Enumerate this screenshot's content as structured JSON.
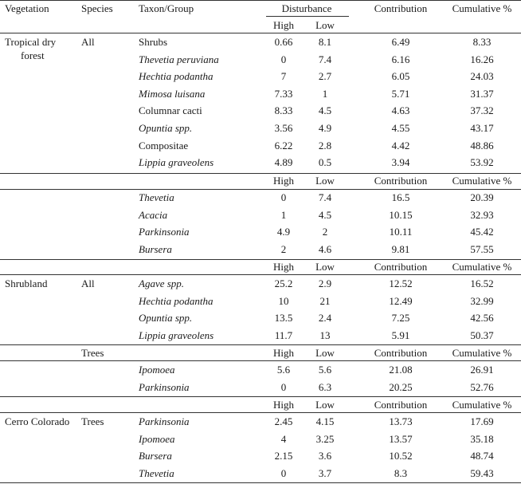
{
  "header": {
    "vegetation": "Vegetation",
    "species": "Species",
    "taxon": "Taxon/Group",
    "disturbance": "Disturbance",
    "contribution": "Contribution",
    "cumulative": "Cumulative %"
  },
  "subheader": {
    "high": "High",
    "low": "Low",
    "contribution": "Contribution",
    "cumulative": "Cumulative %"
  },
  "sections": [
    {
      "vegetation": "Tropical dry forest",
      "vegetation_lines": [
        "Tropical dry",
        "forest"
      ],
      "groups": [
        {
          "species": "All",
          "show_subheader": "partial",
          "rows": [
            {
              "taxon": "Shrubs",
              "italic": false,
              "high": "0.66",
              "low": "8.1",
              "contribution": "6.49",
              "cumulative": "8.33"
            },
            {
              "taxon": "Thevetia peruviana",
              "italic": true,
              "high": "0",
              "low": "7.4",
              "contribution": "6.16",
              "cumulative": "16.26"
            },
            {
              "taxon": "Hechtia podantha",
              "italic": true,
              "high": "7",
              "low": "2.7",
              "contribution": "6.05",
              "cumulative": "24.03"
            },
            {
              "taxon": "Mimosa luisana",
              "italic": true,
              "high": "7.33",
              "low": "1",
              "contribution": "5.71",
              "cumulative": "31.37"
            },
            {
              "taxon": "Columnar cacti",
              "italic": false,
              "high": "8.33",
              "low": "4.5",
              "contribution": "4.63",
              "cumulative": "37.32"
            },
            {
              "taxon": "Opuntia spp.",
              "italic": true,
              "high": "3.56",
              "low": "4.9",
              "contribution": "4.55",
              "cumulative": "43.17"
            },
            {
              "taxon": "Compositae",
              "italic": false,
              "high": "6.22",
              "low": "2.8",
              "contribution": "4.42",
              "cumulative": "48.86"
            },
            {
              "taxon": "Lippia graveolens",
              "italic": true,
              "high": "4.89",
              "low": "0.5",
              "contribution": "3.94",
              "cumulative": "53.92"
            }
          ]
        },
        {
          "species": "",
          "rows": [
            {
              "taxon": "Thevetia",
              "italic": true,
              "high": "0",
              "low": "7.4",
              "contribution": "16.5",
              "cumulative": "20.39"
            },
            {
              "taxon": "Acacia",
              "italic": true,
              "high": "1",
              "low": "4.5",
              "contribution": "10.15",
              "cumulative": "32.93"
            },
            {
              "taxon": "Parkinsonia",
              "italic": true,
              "high": "4.9",
              "low": "2",
              "contribution": "10.11",
              "cumulative": "45.42"
            },
            {
              "taxon": "Bursera",
              "italic": true,
              "high": "2",
              "low": "4.6",
              "contribution": "9.81",
              "cumulative": "57.55"
            }
          ]
        }
      ]
    },
    {
      "vegetation": "Shrubland",
      "vegetation_lines": [
        "Shrubland"
      ],
      "groups": [
        {
          "species": "All",
          "rows": [
            {
              "taxon": "Agave spp.",
              "italic": true,
              "high": "25.2",
              "low": "2.9",
              "contribution": "12.52",
              "cumulative": "16.52"
            },
            {
              "taxon": "Hechtia podantha",
              "italic": true,
              "high": "10",
              "low": "21",
              "contribution": "12.49",
              "cumulative": "32.99"
            },
            {
              "taxon": "Opuntia spp.",
              "italic": true,
              "high": "13.5",
              "low": "2.4",
              "contribution": "7.25",
              "cumulative": "42.56"
            },
            {
              "taxon": "Lippia graveolens",
              "italic": true,
              "high": "11.7",
              "low": "13",
              "contribution": "5.91",
              "cumulative": "50.37"
            }
          ]
        },
        {
          "species": "Trees",
          "rows": [
            {
              "taxon": "Ipomoea",
              "italic": true,
              "high": "5.6",
              "low": "5.6",
              "contribution": "21.08",
              "cumulative": "26.91"
            },
            {
              "taxon": "Parkinsonia",
              "italic": true,
              "high": "0",
              "low": "6.3",
              "contribution": "20.25",
              "cumulative": "52.76"
            }
          ]
        }
      ]
    },
    {
      "vegetation": "Cerro Colorado",
      "vegetation_lines": [
        "Cerro Colorado"
      ],
      "groups": [
        {
          "species": "Trees",
          "rows": [
            {
              "taxon": "Parkinsonia",
              "italic": true,
              "high": "2.45",
              "low": "4.15",
              "contribution": "13.73",
              "cumulative": "17.69"
            },
            {
              "taxon": "Ipomoea",
              "italic": true,
              "high": "4",
              "low": "3.25",
              "contribution": "13.57",
              "cumulative": "35.18"
            },
            {
              "taxon": "Bursera",
              "italic": true,
              "high": "2.15",
              "low": "3.6",
              "contribution": "10.52",
              "cumulative": "48.74"
            },
            {
              "taxon": "Thevetia",
              "italic": true,
              "high": "0",
              "low": "3.7",
              "contribution": "8.3",
              "cumulative": "59.43"
            }
          ]
        }
      ]
    }
  ]
}
